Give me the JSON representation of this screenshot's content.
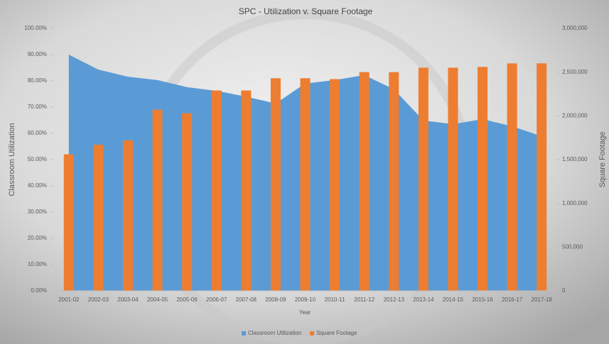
{
  "chart_data": {
    "type": "area-bar",
    "title": "SPC - Utilization v. Square Footage",
    "x_label": "Year",
    "y_label": "Classroom Utilization",
    "y2_label": "Square Footage",
    "categories": [
      "2001-02",
      "2002-03",
      "2003-04",
      "2004-05",
      "2005-06",
      "2006-07",
      "2007-08",
      "2008-09",
      "2009-10",
      "2010-11",
      "2011-12",
      "2012-13",
      "2013-14",
      "2014-15",
      "2015-16",
      "2016-17",
      "2017-18"
    ],
    "series": [
      {
        "name": "Classroom Utilization",
        "type": "area",
        "color": "#5b9bd5",
        "values": [
          90.0,
          84.3,
          81.6,
          80.3,
          77.6,
          76.2,
          74.0,
          71.4,
          79.0,
          80.3,
          82.2,
          76.8,
          64.9,
          63.5,
          65.4,
          62.7,
          58.9
        ]
      },
      {
        "name": "Square Footage",
        "type": "bar",
        "color": "#ed7d31",
        "axis": "y2",
        "values": [
          1560000,
          1670000,
          1720000,
          2070000,
          2030000,
          2290000,
          2290000,
          2430000,
          2430000,
          2420000,
          2500000,
          2500000,
          2550000,
          2550000,
          2560000,
          2600000,
          2600000
        ]
      }
    ],
    "ylim": [
      0,
      100
    ],
    "yticks": [
      {
        "value": 0,
        "label": "0.00%"
      },
      {
        "value": 10,
        "label": "10.00%"
      },
      {
        "value": 20,
        "label": "20.00%"
      },
      {
        "value": 30,
        "label": "30.00%"
      },
      {
        "value": 40,
        "label": "40.00%"
      },
      {
        "value": 50,
        "label": "50.00%"
      },
      {
        "value": 60,
        "label": "60.00%"
      },
      {
        "value": 70,
        "label": "70.00%"
      },
      {
        "value": 80,
        "label": "80.00%"
      },
      {
        "value": 90,
        "label": "90.00%"
      },
      {
        "value": 100,
        "label": "100.00%"
      }
    ],
    "y2lim": [
      0,
      3000000
    ],
    "y2ticks": [
      0,
      {
        "value": 500000,
        "label": "500,000"
      },
      {
        "value": 1000000,
        "label": "1,000,000"
      },
      {
        "value": 1500000,
        "label": "1,500,000"
      },
      {
        "value": 2000000,
        "label": "2,000,000"
      },
      {
        "value": 2500000,
        "label": "2,500,000"
      },
      {
        "value": 3000000,
        "label": "3,000,000"
      }
    ],
    "legend": "bottom"
  }
}
